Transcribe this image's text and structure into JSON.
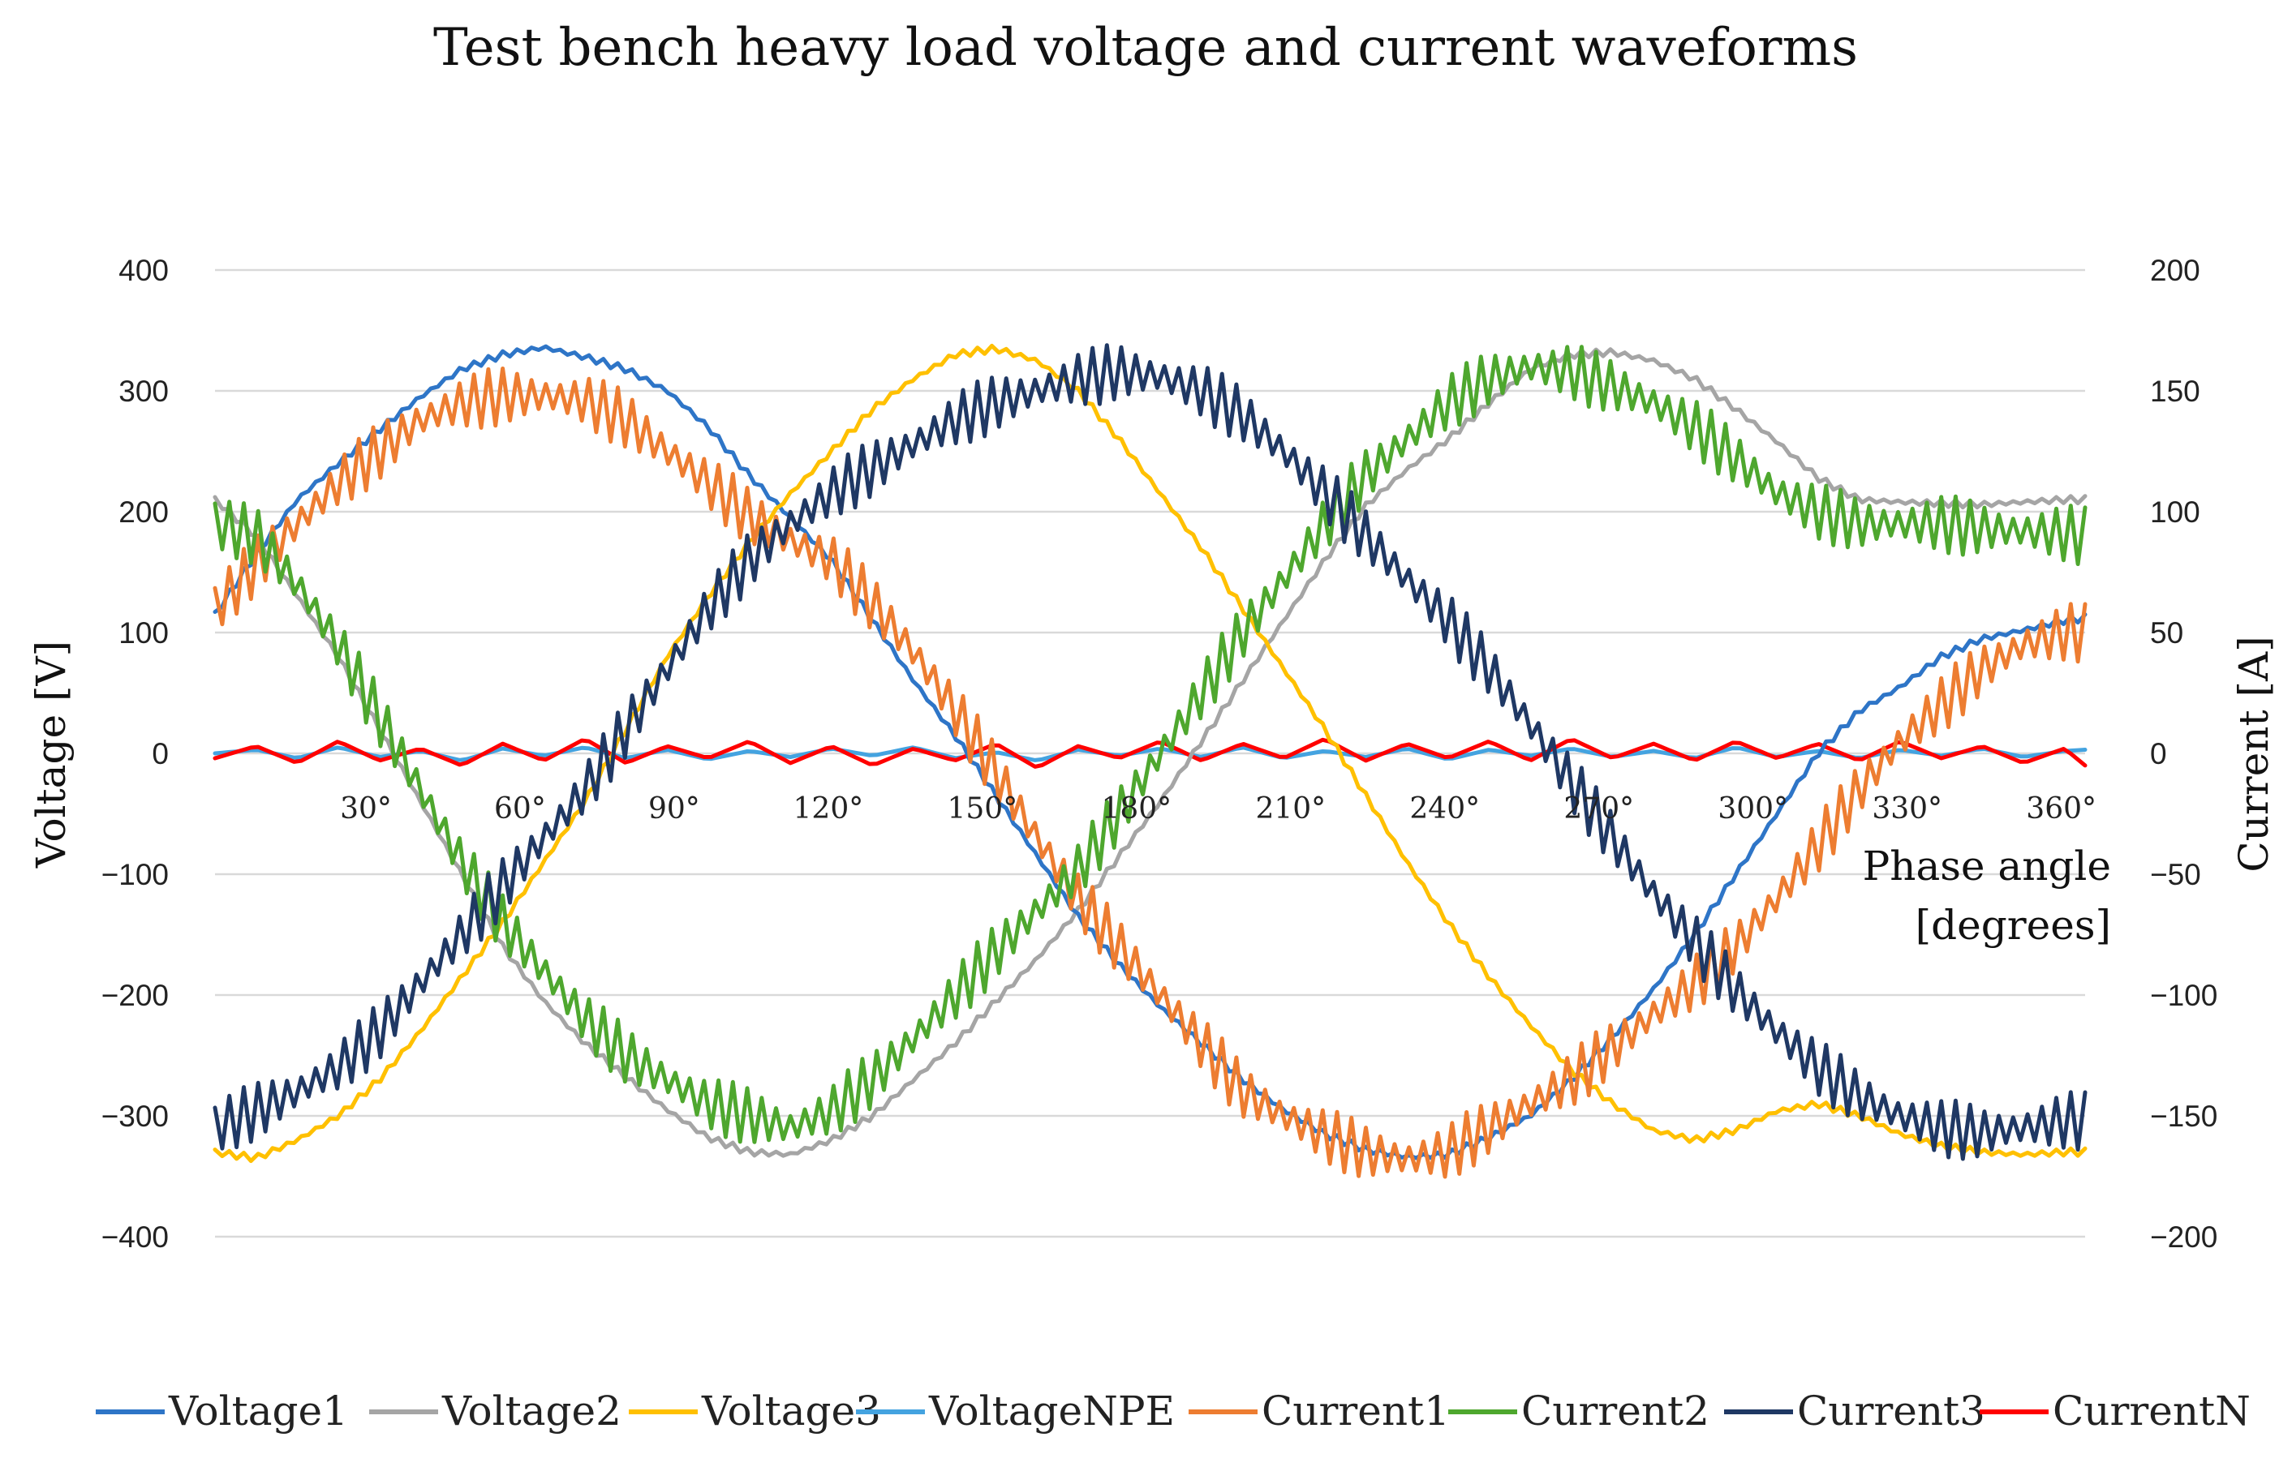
{
  "chart_data": {
    "type": "line",
    "title": "Test bench heavy load voltage and current waveforms",
    "xlabel": "Phase angle [degrees]",
    "xlabel_lines": [
      "Phase angle",
      "[degrees]"
    ],
    "ylabel": "Voltage [V]",
    "y2label": "Current [A]",
    "xlim": [
      0,
      364
    ],
    "ylim": [
      -400,
      400
    ],
    "y2lim": [
      -200,
      200
    ],
    "grid": true,
    "legend_position": "bottom",
    "x_ticks": [
      30,
      60,
      90,
      120,
      150,
      180,
      210,
      240,
      270,
      300,
      330,
      360
    ],
    "x_tick_labels": [
      "30°",
      "60°",
      "90°",
      "120°",
      "150°",
      "180°",
      "210°",
      "240°",
      "270°",
      "300°",
      "330°",
      "360°"
    ],
    "y_ticks": [
      400,
      300,
      200,
      100,
      0,
      -100,
      -200,
      -300,
      -400
    ],
    "y_tick_labels": [
      "400",
      "300",
      "200",
      "100",
      "0",
      "−100",
      "−200",
      "−300",
      "−400"
    ],
    "y2_ticks": [
      200,
      150,
      100,
      50,
      0,
      -50,
      -100,
      -150,
      -200
    ],
    "y2_tick_labels": [
      "200",
      "150",
      "100",
      "50",
      "0",
      "−50",
      "−100",
      "−150",
      "−200"
    ],
    "x": [
      0,
      8,
      16,
      24,
      32,
      40,
      48,
      56,
      64,
      72,
      80,
      88,
      96,
      104,
      112,
      120,
      128,
      136,
      144,
      152,
      160,
      168,
      176,
      184,
      192,
      200,
      208,
      216,
      224,
      232,
      240,
      248,
      256,
      264,
      272,
      280,
      288,
      296,
      304,
      312,
      320,
      328,
      336,
      344,
      352,
      360,
      364
    ],
    "series": [
      {
        "name": "Voltage1",
        "axis": "left",
        "color": "#2e75c7",
        "values": [
          115,
          165,
          210,
          240,
          268,
          295,
          318,
          330,
          336,
          328,
          318,
          300,
          270,
          230,
          195,
          160,
          110,
          60,
          15,
          -35,
          -85,
          -135,
          -175,
          -210,
          -240,
          -270,
          -295,
          -315,
          -328,
          -334,
          -332,
          -318,
          -300,
          -270,
          -235,
          -195,
          -150,
          -100,
          -50,
          0,
          35,
          55,
          80,
          95,
          102,
          110,
          112
        ]
      },
      {
        "name": "Voltage2",
        "axis": "left",
        "color": "#a5a5a5",
        "values": [
          210,
          180,
          130,
          80,
          20,
          -40,
          -100,
          -160,
          -205,
          -240,
          -268,
          -295,
          -318,
          -330,
          -332,
          -320,
          -300,
          -270,
          -240,
          -205,
          -170,
          -130,
          -85,
          -40,
          10,
          60,
          110,
          160,
          205,
          235,
          260,
          290,
          318,
          330,
          332,
          325,
          310,
          285,
          258,
          228,
          210,
          208,
          207,
          206,
          208,
          210,
          210
        ]
      },
      {
        "name": "Voltage3",
        "axis": "left",
        "color": "#ffc000",
        "values": [
          -330,
          -335,
          -320,
          -300,
          -270,
          -230,
          -185,
          -140,
          -90,
          -40,
          20,
          80,
          130,
          175,
          215,
          250,
          285,
          310,
          330,
          335,
          325,
          300,
          260,
          215,
          170,
          120,
          70,
          20,
          -35,
          -90,
          -140,
          -185,
          -225,
          -262,
          -290,
          -312,
          -320,
          -312,
          -296,
          -290,
          -300,
          -315,
          -325,
          -330,
          -332,
          -330,
          -330
        ]
      },
      {
        "name": "VoltageNPE",
        "axis": "left",
        "color": "#44a3e0",
        "values": [
          0,
          3,
          -4,
          5,
          -3,
          2,
          -6,
          4,
          -2,
          5,
          -4,
          3,
          -5,
          2,
          -3,
          4,
          -2,
          5,
          -4,
          1,
          -6,
          3,
          -2,
          4,
          -3,
          5,
          -4,
          2,
          -3,
          4,
          -5,
          3,
          -2,
          4,
          -3,
          2,
          -4,
          5,
          -3,
          2,
          -4,
          3,
          -2,
          4,
          -3,
          2,
          3
        ]
      },
      {
        "name": "Current1",
        "axis": "right",
        "color": "#ed7d31",
        "values": [
          60,
          78,
          95,
          112,
          125,
          138,
          145,
          148,
          148,
          146,
          138,
          125,
          112,
          98,
          88,
          80,
          62,
          42,
          18,
          -8,
          -35,
          -60,
          -80,
          -100,
          -120,
          -140,
          -150,
          -158,
          -165,
          -168,
          -165,
          -155,
          -145,
          -135,
          -122,
          -108,
          -95,
          -80,
          -60,
          -38,
          -15,
          5,
          20,
          35,
          45,
          50,
          50
        ]
      },
      {
        "name": "Current2",
        "axis": "right",
        "color": "#4ea72e",
        "values": [
          95,
          90,
          70,
          45,
          15,
          -15,
          -45,
          -70,
          -90,
          -110,
          -125,
          -135,
          -145,
          -150,
          -155,
          -148,
          -135,
          -118,
          -100,
          -82,
          -65,
          -48,
          -25,
          0,
          25,
          50,
          72,
          95,
          115,
          130,
          145,
          155,
          160,
          158,
          152,
          145,
          135,
          122,
          108,
          100,
          95,
          95,
          95,
          93,
          92,
          91,
          90
        ]
      },
      {
        "name": "Current3",
        "axis": "right",
        "color": "#1f3864",
        "values": [
          -155,
          -148,
          -140,
          -130,
          -115,
          -95,
          -75,
          -55,
          -35,
          -15,
          10,
          35,
          60,
          80,
          95,
          108,
          118,
          128,
          138,
          145,
          150,
          155,
          158,
          156,
          150,
          140,
          125,
          108,
          90,
          72,
          55,
          35,
          12,
          -12,
          -35,
          -58,
          -78,
          -98,
          -115,
          -130,
          -142,
          -150,
          -155,
          -157,
          -155,
          -152,
          -152
        ]
      },
      {
        "name": "CurrentN",
        "axis": "right",
        "color": "#ff0000",
        "values": [
          -2,
          3,
          -4,
          5,
          -3,
          2,
          -5,
          4,
          -3,
          6,
          -4,
          3,
          -2,
          5,
          -4,
          3,
          -5,
          2,
          -3,
          4,
          -6,
          3,
          -2,
          5,
          -3,
          4,
          -2,
          6,
          -3,
          4,
          -2,
          5,
          -3,
          6,
          -2,
          4,
          -3,
          5,
          -2,
          4,
          -3,
          5,
          -2,
          3,
          -4,
          2,
          -5
        ]
      }
    ]
  }
}
